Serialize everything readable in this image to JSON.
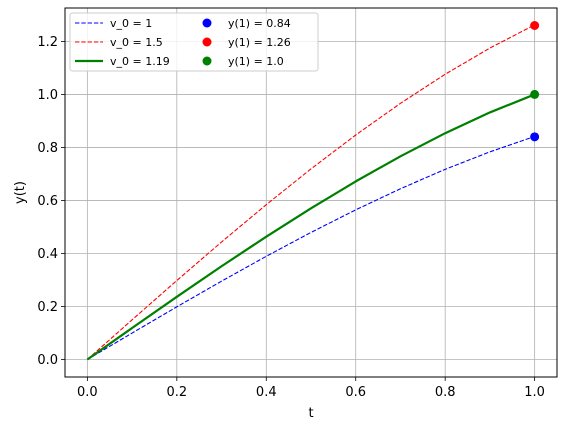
{
  "chart_data": {
    "type": "line",
    "title": "",
    "xlabel": "t",
    "ylabel": "y(t)",
    "xlim": [
      -0.05,
      1.05
    ],
    "ylim": [
      -0.066,
      1.326
    ],
    "xticks": [
      0.0,
      0.2,
      0.4,
      0.6,
      0.8,
      1.0
    ],
    "xtick_labels": [
      "0.0",
      "0.2",
      "0.4",
      "0.6",
      "0.8",
      "1.0"
    ],
    "yticks": [
      0.0,
      0.2,
      0.4,
      0.6,
      0.8,
      1.0,
      1.2
    ],
    "ytick_labels": [
      "0.0",
      "0.2",
      "0.4",
      "0.6",
      "0.8",
      "1.0",
      "1.2"
    ],
    "grid": true,
    "legend_position": "top-left",
    "series": [
      {
        "name": "v_0 = 1",
        "kind": "line",
        "style": "dashed",
        "color": "#0000ff",
        "x": [
          0,
          0.1,
          0.2,
          0.3,
          0.4,
          0.5,
          0.6,
          0.7,
          0.8,
          0.9,
          1.0
        ],
        "y": [
          0,
          0.0998,
          0.1987,
          0.2955,
          0.3894,
          0.4794,
          0.5646,
          0.6442,
          0.7174,
          0.7833,
          0.8415
        ]
      },
      {
        "name": "v_0 = 1.5",
        "kind": "line",
        "style": "dashed",
        "color": "#ff0000",
        "x": [
          0,
          0.1,
          0.2,
          0.3,
          0.4,
          0.5,
          0.6,
          0.7,
          0.8,
          0.9,
          1.0
        ],
        "y": [
          0,
          0.1497,
          0.298,
          0.4433,
          0.5841,
          0.7191,
          0.8469,
          0.9663,
          1.0761,
          1.175,
          1.2622
        ]
      },
      {
        "name": "v_0 = 1.19",
        "kind": "line",
        "style": "solid",
        "color": "#008000",
        "x": [
          0,
          0.1,
          0.2,
          0.3,
          0.4,
          0.5,
          0.6,
          0.7,
          0.8,
          0.9,
          1.0
        ],
        "y": [
          0,
          0.1188,
          0.2365,
          0.3517,
          0.4634,
          0.5705,
          0.6719,
          0.7666,
          0.8537,
          0.9321,
          1.0
        ]
      },
      {
        "name": "y(1) = 0.84",
        "kind": "point",
        "color": "#0000ff",
        "x": [
          1.0
        ],
        "y": [
          0.84
        ]
      },
      {
        "name": "y(1) = 1.26",
        "kind": "point",
        "color": "#ff0000",
        "x": [
          1.0
        ],
        "y": [
          1.26
        ]
      },
      {
        "name": "y(1) = 1.0",
        "kind": "point",
        "color": "#008000",
        "x": [
          1.0
        ],
        "y": [
          1.0
        ]
      }
    ]
  }
}
